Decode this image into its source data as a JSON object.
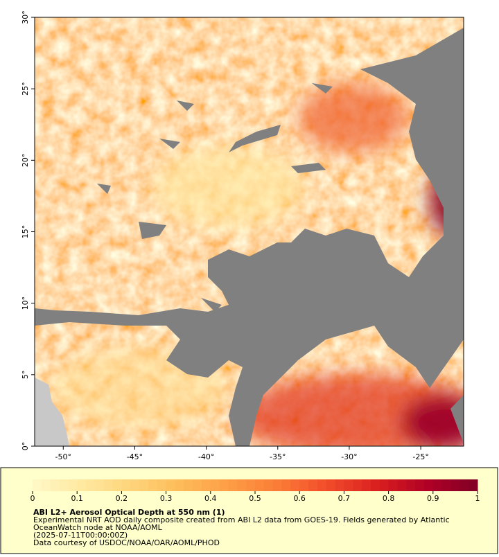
{
  "map": {
    "xlim": [
      -52,
      -22
    ],
    "ylim": [
      0,
      30
    ],
    "xticks": [
      {
        "value": -50,
        "label": "-50°"
      },
      {
        "value": -45,
        "label": "-45°"
      },
      {
        "value": -40,
        "label": "-40°"
      },
      {
        "value": -35,
        "label": "-35°"
      },
      {
        "value": -30,
        "label": "-30°"
      },
      {
        "value": -25,
        "label": "-25°"
      }
    ],
    "yticks": [
      {
        "value": 0,
        "label": "0°"
      },
      {
        "value": 5,
        "label": "5°"
      },
      {
        "value": 10,
        "label": "10°"
      },
      {
        "value": 15,
        "label": "15°"
      },
      {
        "value": 20,
        "label": "20°"
      },
      {
        "value": 25,
        "label": "25°"
      },
      {
        "value": 30,
        "label": "30°"
      }
    ]
  },
  "colorbar": {
    "title": "ABI L2+ Aerosol Optical Depth at 550 nm (1)",
    "lim": [
      0,
      1
    ],
    "ticks": [
      0,
      0.1,
      0.2,
      0.3,
      0.4,
      0.5,
      0.6,
      0.7,
      0.8,
      0.9,
      1
    ],
    "colors": [
      "#fff8c8",
      "#ffe9a0",
      "#fed47a",
      "#fdbb58",
      "#fd9c45",
      "#fb7a36",
      "#f04a2a",
      "#d91e1f",
      "#b00026",
      "#800026"
    ]
  },
  "notes": [
    "Experimental NRT AOD daily composite created from ABI L2 data from GOES-19. Fields generated by Atlantic",
    "OceanWatch node at NOAA/AOML",
    "(2025-07-11T00:00:00Z)",
    "Data courtesy of USDOC/NOAA/OAR/AOML/PHOD"
  ]
}
